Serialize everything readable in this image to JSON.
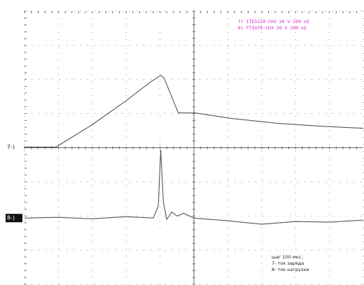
{
  "chart_data": {
    "type": "line",
    "series": [
      {
        "name": "7) ITES220-CH3 20 V 200 nS",
        "color": "#555555",
        "x": [
          0,
          0.93,
          1.96,
          2.99,
          3.71,
          4.02,
          4.12,
          4.54,
          5.05,
          6.08,
          7.53,
          8.76,
          10
        ],
        "values": [
          4.02,
          4.02,
          4.65,
          5.37,
          5.92,
          6.12,
          6.04,
          5.02,
          5.02,
          4.86,
          4.71,
          4.63,
          4.57
        ]
      },
      {
        "name": "8) FT5U79-CH3 30 V 200 nS",
        "color": "#555555",
        "x": [
          0,
          1,
          2,
          3,
          3.8,
          3.95,
          4.02,
          4.1,
          4.2,
          4.35,
          4.5,
          4.7,
          5,
          6,
          7,
          8,
          9,
          10
        ],
        "values": [
          1.94,
          1.96,
          1.92,
          1.98,
          1.94,
          2.3,
          3.94,
          2.4,
          1.9,
          2.12,
          2.0,
          2.08,
          1.94,
          1.86,
          1.76,
          1.84,
          1.82,
          1.88
        ]
      }
    ],
    "markers": [
      "7-)",
      "8-)"
    ],
    "notes": [
      "шаг 100 мкс;",
      "7- ток заряда",
      "8- ток нагрузки"
    ],
    "xlim": [
      0,
      10
    ],
    "ylim": [
      0,
      8
    ],
    "xticks": [
      0,
      1,
      2,
      3,
      4,
      5,
      6,
      7,
      8,
      9,
      10
    ],
    "yticks": [
      0,
      1,
      2,
      3,
      4,
      5,
      6,
      7,
      8
    ],
    "grid": true
  }
}
